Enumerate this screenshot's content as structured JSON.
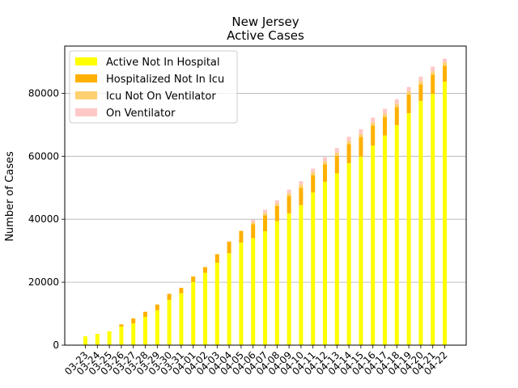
{
  "chart_data": {
    "type": "bar",
    "stacked": true,
    "title": "New Jersey",
    "subtitle": "Active Cases",
    "xlabel": "",
    "ylabel": "Number of Cases",
    "ylim": [
      0,
      95000
    ],
    "yticks": [
      0,
      20000,
      40000,
      60000,
      80000
    ],
    "grid": "horizontal",
    "legend_position": "top-left",
    "categories": [
      "03-23",
      "03-24",
      "03-25",
      "03-26",
      "03-27",
      "03-28",
      "03-29",
      "03-30",
      "03-31",
      "04-01",
      "04-02",
      "04-03",
      "04-04",
      "04-05",
      "04-06",
      "04-07",
      "04-08",
      "04-09",
      "04-10",
      "04-11",
      "04-12",
      "04-13",
      "04-14",
      "04-15",
      "04-16",
      "04-17",
      "04-18",
      "04-19",
      "04-20",
      "04-21",
      "04-22"
    ],
    "series": [
      {
        "name": "Active Not In Hospital",
        "color": "#ffff00",
        "values": [
          2800,
          3600,
          4400,
          5900,
          6900,
          9000,
          11100,
          14400,
          16500,
          20100,
          23000,
          26200,
          29200,
          32600,
          34000,
          36200,
          39400,
          41900,
          44500,
          48500,
          51900,
          54600,
          57800,
          59900,
          63400,
          66600,
          69900,
          73700,
          77600,
          79800,
          83700
        ]
      },
      {
        "name": "Hospitalized Not In Icu",
        "color": "#ffb000",
        "values": [
          0,
          0,
          0,
          700,
          1600,
          1600,
          1800,
          1900,
          1700,
          1700,
          1800,
          2700,
          3700,
          3700,
          4400,
          5000,
          4800,
          5500,
          5500,
          5500,
          5500,
          5500,
          6000,
          6200,
          6300,
          5900,
          5700,
          5900,
          5200,
          6100,
          5000
        ]
      },
      {
        "name": "Icu Not On Ventilator",
        "color": "#ffd070",
        "values": [
          0,
          0,
          0,
          0,
          0,
          0,
          0,
          0,
          0,
          0,
          0,
          0,
          0,
          0,
          700,
          800,
          800,
          900,
          1000,
          1000,
          1000,
          1000,
          1100,
          1000,
          1100,
          1100,
          1100,
          1100,
          1100,
          1100,
          1100
        ]
      },
      {
        "name": "On Ventilator",
        "color": "#ffc8c8",
        "values": [
          0,
          0,
          0,
          0,
          0,
          0,
          0,
          0,
          0,
          0,
          0,
          0,
          0,
          0,
          700,
          1000,
          1000,
          1100,
          1100,
          1100,
          1300,
          1500,
          1300,
          1500,
          1500,
          1500,
          1400,
          1300,
          1400,
          1500,
          1200
        ]
      }
    ]
  }
}
